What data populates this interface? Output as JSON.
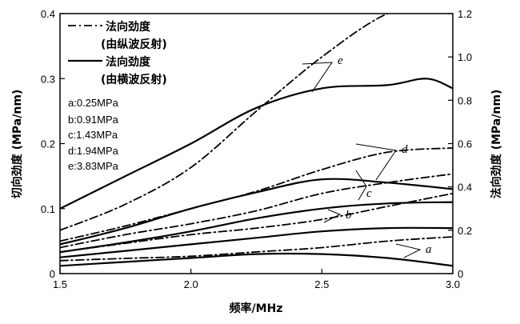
{
  "chart_data": {
    "type": "line",
    "xlabel": "频率/MHz",
    "ylabel": "切向劲度 (MPa/nm)",
    "y2label": "法向劲度 (MPa/nm)",
    "xlim": [
      1.5,
      3.0
    ],
    "ylim": [
      0,
      0.4
    ],
    "y2lim": [
      0,
      1.2
    ],
    "xticks": [
      "1.5",
      "2.0",
      "2.5",
      "3.0"
    ],
    "yticks": [
      "0",
      "0.1",
      "0.2",
      "0.3",
      "0.4"
    ],
    "y2ticks": [
      "0",
      "0.2",
      "0.4",
      "0.6",
      "0.8",
      "1.0",
      "1.2"
    ],
    "grid": false,
    "legend": [
      {
        "style": "dash-dot",
        "line1": "法向劲度",
        "line2": "(由纵波反射)"
      },
      {
        "style": "solid",
        "line1": "法向劲度",
        "line2": "(由横波反射)"
      }
    ],
    "conditions": [
      "a:0.25MPa",
      "b:0.91MPa",
      "c:1.43MPa",
      "d:1.94MPa",
      "e:3.83MPa"
    ],
    "series": [
      {
        "name": "a",
        "style": "dash-dot",
        "axis": "right",
        "x": [
          1.5,
          1.75,
          2.0,
          2.25,
          2.5,
          2.75,
          3.0
        ],
        "y": [
          0.06,
          0.07,
          0.08,
          0.1,
          0.12,
          0.15,
          0.17
        ]
      },
      {
        "name": "a",
        "style": "solid",
        "axis": "left",
        "x": [
          1.5,
          1.75,
          2.0,
          2.25,
          2.5,
          2.75,
          3.0
        ],
        "y": [
          0.012,
          0.018,
          0.024,
          0.03,
          0.03,
          0.024,
          0.012
        ]
      },
      {
        "name": "b",
        "style": "dash-dot",
        "axis": "right",
        "x": [
          1.5,
          1.75,
          2.0,
          2.25,
          2.5,
          2.75,
          3.0
        ],
        "y": [
          0.1,
          0.14,
          0.18,
          0.21,
          0.25,
          0.31,
          0.37
        ]
      },
      {
        "name": "b",
        "style": "solid",
        "axis": "left",
        "x": [
          1.5,
          1.75,
          2.0,
          2.25,
          2.5,
          2.75,
          3.0
        ],
        "y": [
          0.025,
          0.035,
          0.045,
          0.055,
          0.065,
          0.07,
          0.07
        ]
      },
      {
        "name": "c",
        "style": "dash-dot",
        "axis": "right",
        "x": [
          1.5,
          1.75,
          2.0,
          2.25,
          2.5,
          2.75,
          3.0
        ],
        "y": [
          0.12,
          0.18,
          0.23,
          0.29,
          0.37,
          0.42,
          0.46
        ]
      },
      {
        "name": "c",
        "style": "solid",
        "axis": "left",
        "x": [
          1.5,
          1.75,
          2.0,
          2.25,
          2.5,
          2.75,
          3.0
        ],
        "y": [
          0.033,
          0.048,
          0.065,
          0.085,
          0.1,
          0.108,
          0.11
        ]
      },
      {
        "name": "d",
        "style": "dash-dot",
        "axis": "right",
        "x": [
          1.5,
          1.75,
          2.0,
          2.25,
          2.5,
          2.75,
          3.0
        ],
        "y": [
          0.15,
          0.22,
          0.3,
          0.38,
          0.48,
          0.56,
          0.58
        ]
      },
      {
        "name": "d",
        "style": "solid",
        "axis": "left",
        "x": [
          1.5,
          1.75,
          2.0,
          2.25,
          2.5,
          2.75,
          3.0
        ],
        "y": [
          0.045,
          0.07,
          0.1,
          0.125,
          0.145,
          0.14,
          0.13
        ]
      },
      {
        "name": "e",
        "style": "dash-dot",
        "axis": "right",
        "x": [
          1.5,
          1.75,
          2.0,
          2.25,
          2.5,
          2.75,
          3.0
        ],
        "y": [
          0.2,
          0.32,
          0.49,
          0.75,
          1.0,
          1.2,
          1.28
        ]
      },
      {
        "name": "e",
        "style": "solid",
        "axis": "left",
        "x": [
          1.5,
          1.75,
          2.0,
          2.25,
          2.5,
          2.75,
          2.9,
          3.0
        ],
        "y": [
          0.1,
          0.15,
          0.2,
          0.255,
          0.285,
          0.29,
          0.3,
          0.285
        ]
      }
    ]
  }
}
